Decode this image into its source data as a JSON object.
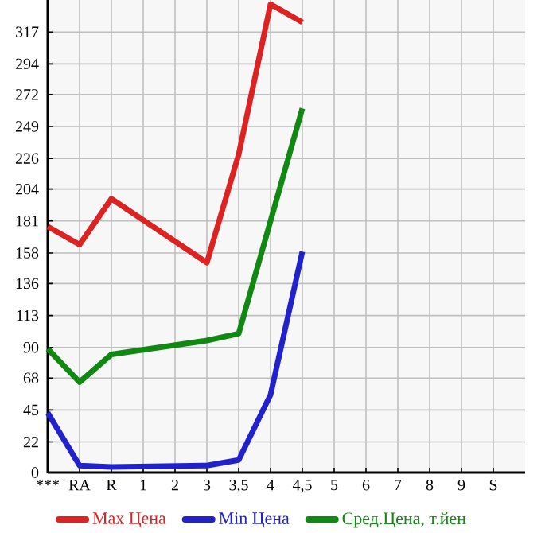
{
  "chart_data": {
    "type": "line",
    "categories": [
      "***",
      "RA",
      "R",
      "1",
      "2",
      "3",
      "3,5",
      "4",
      "4,5",
      "5",
      "6",
      "7",
      "8",
      "9",
      "S"
    ],
    "series": [
      {
        "name": "Max Цена",
        "color": "#dd2222",
        "values": [
          177,
          164,
          197,
          null,
          null,
          151,
          229,
          337,
          324,
          null,
          null,
          null,
          null,
          null,
          null
        ]
      },
      {
        "name": "Min Цена",
        "color": "#2222cc",
        "values": [
          43,
          5,
          4,
          null,
          null,
          5,
          9,
          56,
          159,
          null,
          null,
          null,
          null,
          null,
          null
        ]
      },
      {
        "name": "Сред.Цена, т.йен",
        "color": "#118811",
        "values": [
          89,
          65,
          85,
          null,
          null,
          95,
          100,
          null,
          262,
          null,
          null,
          null,
          null,
          null,
          null
        ]
      }
    ],
    "ylim": [
      0,
      340
    ],
    "yticks": [
      0,
      22,
      45,
      68,
      90,
      113,
      136,
      158,
      181,
      204,
      226,
      249,
      272,
      294,
      317
    ],
    "grid": true,
    "legend": "bottom",
    "marker": "none",
    "line_style": "solid"
  }
}
